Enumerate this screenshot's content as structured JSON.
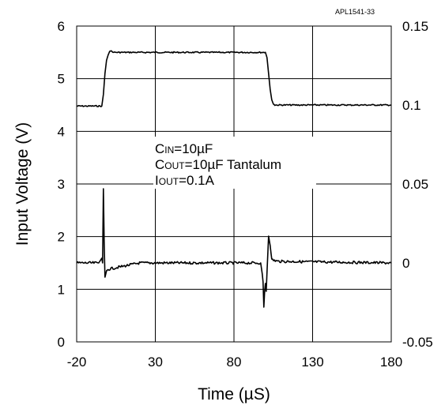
{
  "chart_data": {
    "type": "line",
    "reference_id": "APL1541-33",
    "xlabel": "Time (µS)",
    "ylabel": "Input Voltage (V)",
    "xlim": [
      -20,
      180
    ],
    "ylim": [
      0,
      6
    ],
    "y2lim": [
      -0.05,
      0.15
    ],
    "grid": true,
    "x_ticks": [
      "-20",
      "30",
      "80",
      "130",
      "180"
    ],
    "y_ticks": [
      "0",
      "1",
      "2",
      "3",
      "4",
      "5",
      "6"
    ],
    "y2_ticks": [
      "-0.05",
      "0",
      "0.05",
      "0.1",
      "0.15"
    ],
    "annotations": [
      {
        "main": "C",
        "sub": "IN",
        "rest": "=10µF"
      },
      {
        "main": "C",
        "sub": "OUT",
        "rest": "=10µF Tantalum"
      },
      {
        "main": "I",
        "sub": "OUT",
        "rest": "=0.1A"
      }
    ],
    "series": [
      {
        "axis": "left",
        "x": [
          -20,
          -4,
          -3,
          -2,
          -1,
          0,
          1,
          2,
          3,
          4,
          100,
          101,
          102,
          103,
          104,
          105,
          106,
          180
        ],
        "values": [
          4.48,
          4.48,
          4.7,
          5.1,
          5.35,
          5.45,
          5.52,
          5.53,
          5.5,
          5.5,
          5.5,
          5.4,
          5.1,
          4.8,
          4.6,
          4.52,
          4.5,
          4.5
        ]
      },
      {
        "axis": "right",
        "x": [
          -20,
          -6,
          -4,
          -3.5,
          -3,
          -2.5,
          -2,
          -1,
          0,
          5,
          20,
          97,
          98,
          98.5,
          99,
          99.5,
          100,
          100.5,
          101,
          102,
          103,
          104,
          108,
          180
        ],
        "values": [
          0.0,
          0.0,
          0.003,
          0.0,
          0.047,
          0.013,
          -0.009,
          -0.005,
          -0.004,
          -0.003,
          0.0,
          0.0,
          -0.007,
          -0.012,
          -0.028,
          -0.018,
          -0.013,
          -0.018,
          -0.006,
          0.017,
          0.011,
          0.002,
          0.001,
          0.0
        ]
      }
    ]
  }
}
